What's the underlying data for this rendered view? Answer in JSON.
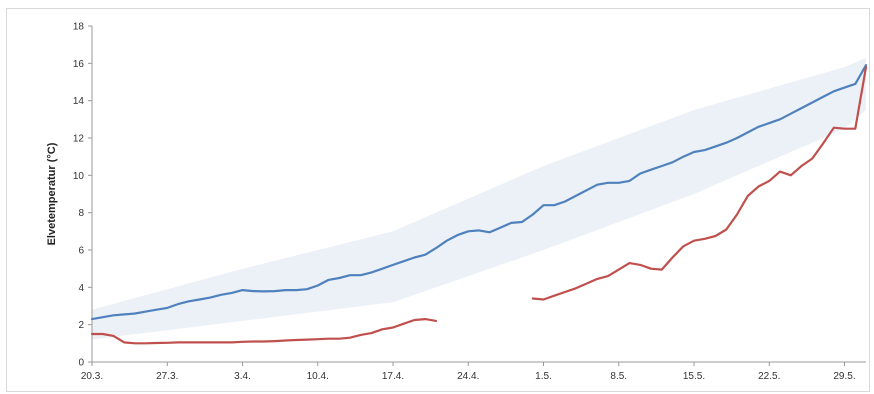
{
  "chart_data": {
    "type": "line",
    "ylabel": "Elvetemperatur (°C)",
    "xlabel": "",
    "title": "",
    "ylim": [
      0,
      18
    ],
    "yticks": [
      0,
      2,
      4,
      6,
      8,
      10,
      12,
      14,
      16,
      18
    ],
    "xlim": [
      0,
      72
    ],
    "xticks": [
      {
        "x": 0,
        "label": "20.3."
      },
      {
        "x": 7,
        "label": "27.3."
      },
      {
        "x": 14,
        "label": "3.4."
      },
      {
        "x": 21,
        "label": "10.4."
      },
      {
        "x": 28,
        "label": "17.4."
      },
      {
        "x": 35,
        "label": "24.4."
      },
      {
        "x": 42,
        "label": "1.5."
      },
      {
        "x": 49,
        "label": "8.5."
      },
      {
        "x": 56,
        "label": "15.5."
      },
      {
        "x": 63,
        "label": "22.5."
      },
      {
        "x": 70,
        "label": "29.5."
      }
    ],
    "grid": false,
    "shaded_band": {
      "color": "#dde6f3",
      "lower": [
        [
          0,
          1.2
        ],
        [
          14,
          2.2
        ],
        [
          28,
          3.2
        ],
        [
          42,
          6.0
        ],
        [
          56,
          9.0
        ],
        [
          70,
          12.5
        ],
        [
          72,
          13.5
        ]
      ],
      "upper": [
        [
          0,
          2.8
        ],
        [
          14,
          5.0
        ],
        [
          28,
          7.0
        ],
        [
          42,
          10.5
        ],
        [
          56,
          13.5
        ],
        [
          70,
          15.8
        ],
        [
          72,
          16.3
        ]
      ]
    },
    "series": [
      {
        "color": "#4f81bd",
        "x": [
          0,
          1,
          2,
          3,
          4,
          5,
          6,
          7,
          8,
          9,
          10,
          11,
          12,
          13,
          14,
          15,
          16,
          17,
          18,
          19,
          20,
          21,
          22,
          23,
          24,
          25,
          26,
          27,
          28,
          29,
          30,
          31,
          32,
          33,
          34,
          35,
          36,
          37,
          38,
          39,
          40,
          41,
          42,
          43,
          44,
          45,
          46,
          47,
          48,
          49,
          50,
          51,
          52,
          53,
          54,
          55,
          56,
          57,
          58,
          59,
          60,
          61,
          62,
          63,
          64,
          65,
          66,
          67,
          68,
          69,
          70,
          71,
          72
        ],
        "values": [
          2.3,
          2.4,
          2.5,
          2.55,
          2.6,
          2.7,
          2.8,
          2.9,
          3.1,
          3.25,
          3.35,
          3.45,
          3.6,
          3.7,
          3.85,
          3.8,
          3.78,
          3.8,
          3.85,
          3.85,
          3.9,
          4.1,
          4.4,
          4.5,
          4.65,
          4.65,
          4.8,
          5.0,
          5.2,
          5.4,
          5.6,
          5.75,
          6.1,
          6.5,
          6.8,
          7.0,
          7.05,
          6.95,
          7.2,
          7.45,
          7.5,
          7.9,
          8.4,
          8.4,
          8.6,
          8.9,
          9.2,
          9.5,
          9.6,
          9.6,
          9.7,
          10.1,
          10.3,
          10.5,
          10.7,
          11.0,
          11.25,
          11.35,
          11.55,
          11.75,
          12.0,
          12.3,
          12.6,
          12.8,
          13.0,
          13.3,
          13.6,
          13.9,
          14.2,
          14.5,
          14.7,
          14.9,
          15.9
        ]
      },
      {
        "color": "#c0504d",
        "x": [
          0,
          1,
          2,
          3,
          4,
          5,
          6,
          7,
          8,
          9,
          10,
          11,
          12,
          13,
          14,
          15,
          16,
          17,
          18,
          19,
          20,
          21,
          22,
          23,
          24,
          25,
          26,
          27,
          28,
          29,
          30,
          31,
          32
        ],
        "values": [
          1.5,
          1.5,
          1.4,
          1.05,
          1.0,
          1.0,
          1.02,
          1.03,
          1.05,
          1.05,
          1.05,
          1.05,
          1.05,
          1.05,
          1.08,
          1.1,
          1.1,
          1.12,
          1.15,
          1.18,
          1.2,
          1.22,
          1.25,
          1.25,
          1.3,
          1.45,
          1.55,
          1.75,
          1.85,
          2.05,
          2.25,
          2.3,
          2.2
        ]
      },
      {
        "color": "#c0504d",
        "x": [
          41,
          42,
          43,
          44,
          45,
          46,
          47,
          48,
          49,
          50,
          51,
          52,
          53,
          54,
          55,
          56,
          57,
          58,
          59,
          60,
          61,
          62,
          63,
          64,
          65,
          66,
          67,
          68,
          69,
          70,
          71,
          72
        ],
        "values": [
          3.4,
          3.35,
          3.55,
          3.75,
          3.95,
          4.2,
          4.45,
          4.6,
          4.95,
          5.3,
          5.2,
          5.0,
          4.95,
          5.6,
          6.2,
          6.5,
          6.6,
          6.75,
          7.1,
          7.9,
          8.9,
          9.4,
          9.7,
          10.2,
          10.0,
          10.5,
          10.9,
          11.7,
          12.55,
          12.5,
          12.5,
          15.8
        ]
      }
    ]
  }
}
